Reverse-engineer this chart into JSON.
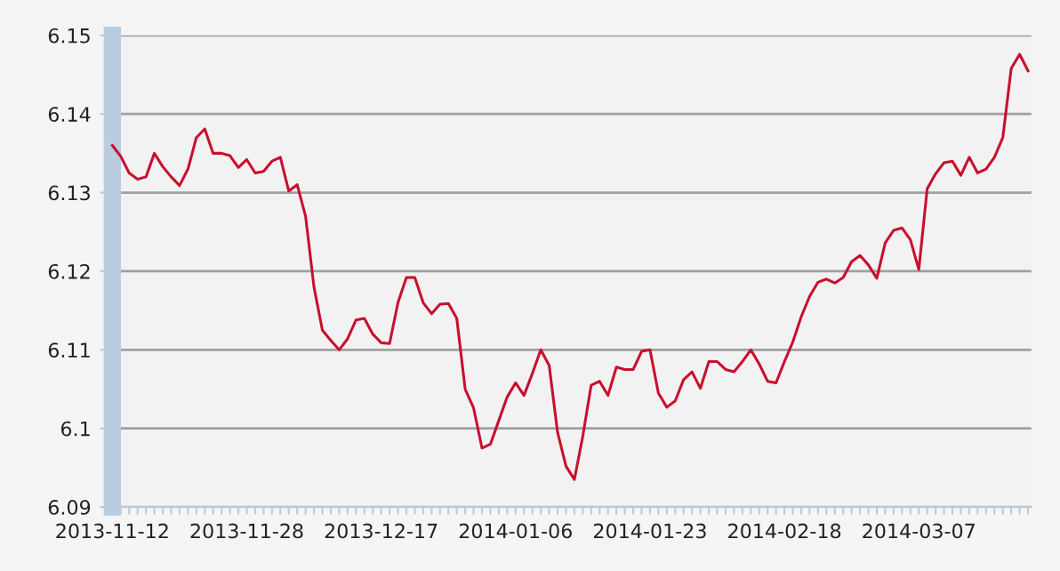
{
  "chart_data": {
    "type": "line",
    "categories": [
      "2013-11-12",
      null,
      null,
      null,
      null,
      null,
      null,
      null,
      null,
      null,
      null,
      null,
      null,
      null,
      null,
      null,
      "2013-11-28",
      null,
      null,
      null,
      null,
      null,
      null,
      null,
      null,
      null,
      null,
      null,
      null,
      null,
      null,
      null,
      "2013-12-17",
      null,
      null,
      null,
      null,
      null,
      null,
      null,
      null,
      null,
      null,
      null,
      null,
      null,
      null,
      null,
      "2014-01-06",
      null,
      null,
      null,
      null,
      null,
      null,
      null,
      null,
      null,
      null,
      null,
      null,
      null,
      null,
      null,
      "2014-01-23",
      null,
      null,
      null,
      null,
      null,
      null,
      null,
      null,
      null,
      null,
      null,
      null,
      null,
      null,
      null,
      "2014-02-18",
      null,
      null,
      null,
      null,
      null,
      null,
      null,
      null,
      null,
      null,
      null,
      null,
      null,
      null,
      null,
      "2014-03-07",
      null,
      null,
      null,
      null,
      null,
      null,
      null,
      null,
      null,
      null,
      null,
      null,
      null
    ],
    "series": [
      {
        "color": "#c8102e",
        "values": [
          6.136,
          6.1346,
          6.1325,
          6.1317,
          6.132,
          6.135,
          6.1333,
          6.132,
          6.1309,
          6.133,
          6.137,
          6.1381,
          6.135,
          6.135,
          6.1347,
          6.1332,
          6.1342,
          6.1325,
          6.1327,
          6.134,
          6.1345,
          6.1302,
          6.131,
          6.127,
          6.118,
          6.1125,
          6.1112,
          6.11,
          6.1114,
          6.1138,
          6.114,
          6.112,
          6.1109,
          6.1108,
          6.116,
          6.1192,
          6.1192,
          6.116,
          6.1146,
          6.1158,
          6.1159,
          6.114,
          6.105,
          6.1026,
          6.0975,
          6.098,
          6.101,
          6.104,
          6.1058,
          6.1042,
          6.107,
          6.11,
          6.108,
          6.0995,
          6.0952,
          6.0935,
          6.099,
          6.1055,
          6.106,
          6.1042,
          6.1078,
          6.1075,
          6.1075,
          6.1098,
          6.11,
          6.1045,
          6.1027,
          6.1035,
          6.1062,
          6.1072,
          6.1051,
          6.1085,
          6.1085,
          6.1075,
          6.1072,
          6.1085,
          6.11,
          6.1082,
          6.106,
          6.1058,
          6.1085,
          6.111,
          6.1142,
          6.1168,
          6.1186,
          6.119,
          6.1185,
          6.1192,
          6.1212,
          6.122,
          6.1208,
          6.1191,
          6.1236,
          6.1252,
          6.1255,
          6.124,
          6.1202,
          6.1305,
          6.1324,
          6.1338,
          6.134,
          6.1322,
          6.1345,
          6.1325,
          6.133,
          6.1345,
          6.137,
          6.1458,
          6.1476,
          6.1455
        ]
      }
    ],
    "ylim": [
      6.09,
      6.15
    ],
    "yticks": [
      6.09,
      6.1,
      6.11,
      6.12,
      6.13,
      6.14,
      6.15
    ],
    "grid": "y",
    "marker": "none",
    "line_style": "solid"
  }
}
